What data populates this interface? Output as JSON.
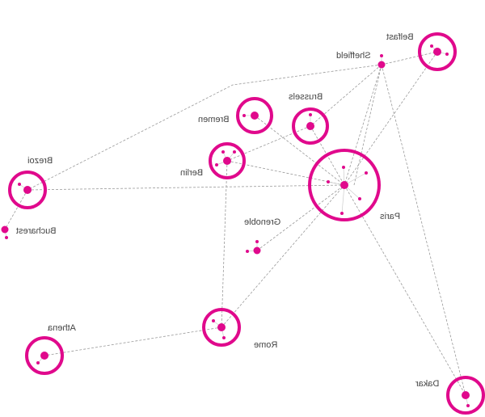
{
  "accent_color": "#e0098c",
  "edge_color": "#9a9a9a",
  "label_orientation": "mirrored",
  "nodes": [
    {
      "id": "belfast",
      "label": "Belfast",
      "ring": true
    },
    {
      "id": "sheffield",
      "label": "Sheffield",
      "ring": false
    },
    {
      "id": "brussels",
      "label": "Brussels",
      "ring": true
    },
    {
      "id": "bremen",
      "label": "Bremen",
      "ring": true
    },
    {
      "id": "berlin",
      "label": "Berlin",
      "ring": true
    },
    {
      "id": "paris",
      "label": "Paris",
      "ring": true
    },
    {
      "id": "grenoble",
      "label": "Grenoble",
      "ring": false
    },
    {
      "id": "brezoi",
      "label": "Brezoi",
      "ring": true
    },
    {
      "id": "bucharest",
      "label": "Bucharest",
      "ring": false
    },
    {
      "id": "rome",
      "label": "Rome",
      "ring": true
    },
    {
      "id": "athena",
      "label": "Athena",
      "ring": true
    },
    {
      "id": "dakar",
      "label": "Dakar",
      "ring": true
    }
  ],
  "edges": [
    [
      "sheffield",
      "belfast"
    ],
    [
      "sheffield",
      "brezoi"
    ],
    [
      "sheffield",
      "brussels"
    ],
    [
      "brussels",
      "berlin"
    ],
    [
      "sheffield",
      "paris"
    ],
    [
      "sheffield",
      "dakar"
    ],
    [
      "belfast",
      "paris"
    ],
    [
      "bremen",
      "paris"
    ],
    [
      "brussels",
      "paris"
    ],
    [
      "berlin",
      "paris"
    ],
    [
      "brezoi",
      "paris"
    ],
    [
      "brezoi",
      "bucharest"
    ],
    [
      "grenoble",
      "paris"
    ],
    [
      "rome",
      "paris"
    ],
    [
      "berlin",
      "rome"
    ],
    [
      "rome",
      "athena"
    ],
    [
      "paris",
      "dakar"
    ]
  ]
}
